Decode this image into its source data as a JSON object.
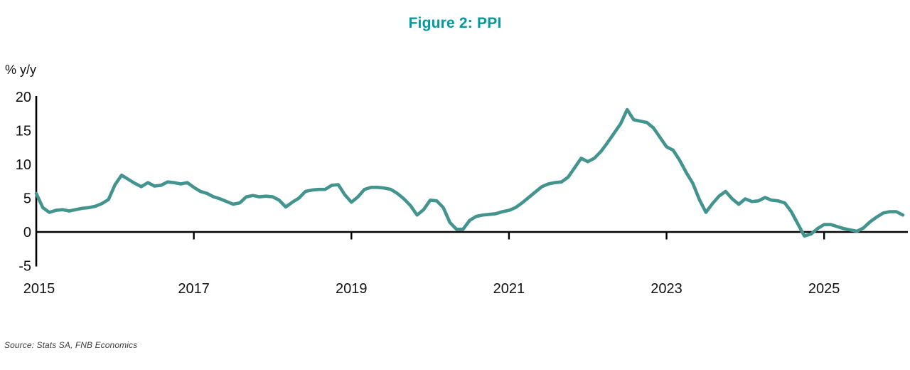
{
  "figure": {
    "title": "Figure 2: PPI",
    "y_axis_unit": "% y/y",
    "source": "Source: Stats SA, FNB Economics"
  },
  "colors": {
    "title": "#009aa0",
    "line": "#43948e",
    "axis": "#000000",
    "tick_text": "#111111",
    "source_text": "#3c3c3c"
  },
  "chart_data": {
    "type": "line",
    "title": "Figure 2: PPI",
    "xlabel": "",
    "ylabel": "% y/y",
    "ylim": [
      -5,
      20
    ],
    "y_ticks": [
      20,
      15,
      10,
      5,
      0,
      -5
    ],
    "x_tick_years": [
      2015,
      2017,
      2019,
      2021,
      2023,
      2025
    ],
    "x_range_months": [
      "2015-01",
      "2026-01"
    ],
    "frequency": "monthly",
    "grid": false,
    "legend": "none",
    "source": "Source: Stats SA, FNB Economics",
    "series": [
      {
        "name": "PPI",
        "unit": "% y/y",
        "values": [
          5.7,
          3.6,
          2.9,
          3.2,
          3.3,
          3.1,
          3.3,
          3.5,
          3.6,
          3.8,
          4.2,
          4.8,
          7.0,
          8.4,
          7.8,
          7.2,
          6.7,
          7.3,
          6.8,
          6.9,
          7.4,
          7.3,
          7.1,
          7.3,
          6.6,
          6.0,
          5.7,
          5.2,
          4.9,
          4.5,
          4.1,
          4.3,
          5.2,
          5.4,
          5.2,
          5.3,
          5.2,
          4.7,
          3.7,
          4.4,
          5.0,
          6.0,
          6.2,
          6.3,
          6.3,
          6.9,
          7.0,
          5.5,
          4.4,
          5.2,
          6.3,
          6.6,
          6.6,
          6.5,
          6.3,
          5.7,
          4.9,
          3.9,
          2.5,
          3.3,
          4.7,
          4.6,
          3.6,
          1.4,
          0.4,
          0.4,
          1.7,
          2.3,
          2.5,
          2.6,
          2.7,
          3.0,
          3.2,
          3.6,
          4.3,
          5.1,
          5.9,
          6.7,
          7.1,
          7.3,
          7.4,
          8.1,
          9.5,
          10.9,
          10.4,
          10.9,
          11.9,
          13.2,
          14.6,
          16.0,
          18.1,
          16.6,
          16.4,
          16.2,
          15.4,
          14.0,
          12.6,
          12.1,
          10.6,
          8.8,
          7.2,
          4.8,
          2.9,
          4.2,
          5.3,
          6.0,
          4.9,
          4.1,
          4.9,
          4.5,
          4.6,
          5.1,
          4.7,
          4.6,
          4.3,
          3.0,
          1.2,
          -0.6,
          -0.3,
          0.5,
          1.1,
          1.1,
          0.8,
          0.5,
          0.3,
          0.1,
          0.6,
          1.5,
          2.2,
          2.8,
          3.0,
          3.0,
          2.5
        ]
      }
    ]
  }
}
